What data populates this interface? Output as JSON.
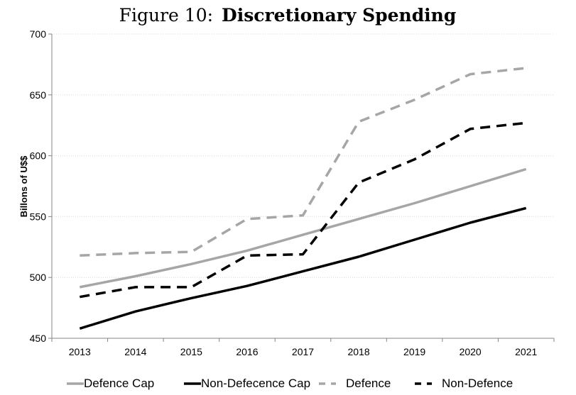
{
  "chart_data": {
    "type": "line",
    "title_prefix": "Figure 10:",
    "title": "Discretionary Spending",
    "xlabel": "",
    "ylabel": "Billons of U$$",
    "ylim": [
      450,
      700
    ],
    "yticks": [
      450,
      500,
      550,
      600,
      650,
      700
    ],
    "categories": [
      "2013",
      "2014",
      "2015",
      "2016",
      "2017",
      "2018",
      "2019",
      "2020",
      "2021"
    ],
    "grid": "horizontal",
    "legend_position": "bottom",
    "series": [
      {
        "name": "Defence Cap",
        "color": "#a6a6a6",
        "dash": "solid",
        "values": [
          492,
          501,
          511,
          522,
          535,
          548,
          561,
          575,
          589
        ]
      },
      {
        "name": "Non-Defecence Cap",
        "color": "#000000",
        "dash": "solid",
        "values": [
          458,
          472,
          483,
          493,
          505,
          517,
          531,
          545,
          557
        ]
      },
      {
        "name": "Defence",
        "color": "#a6a6a6",
        "dash": "dashed",
        "values": [
          518,
          520,
          521,
          548,
          551,
          628,
          646,
          667,
          672
        ]
      },
      {
        "name": "Non-Defence",
        "color": "#000000",
        "dash": "dashed",
        "values": [
          484,
          492,
          492,
          518,
          519,
          578,
          597,
          622,
          627
        ]
      }
    ]
  }
}
